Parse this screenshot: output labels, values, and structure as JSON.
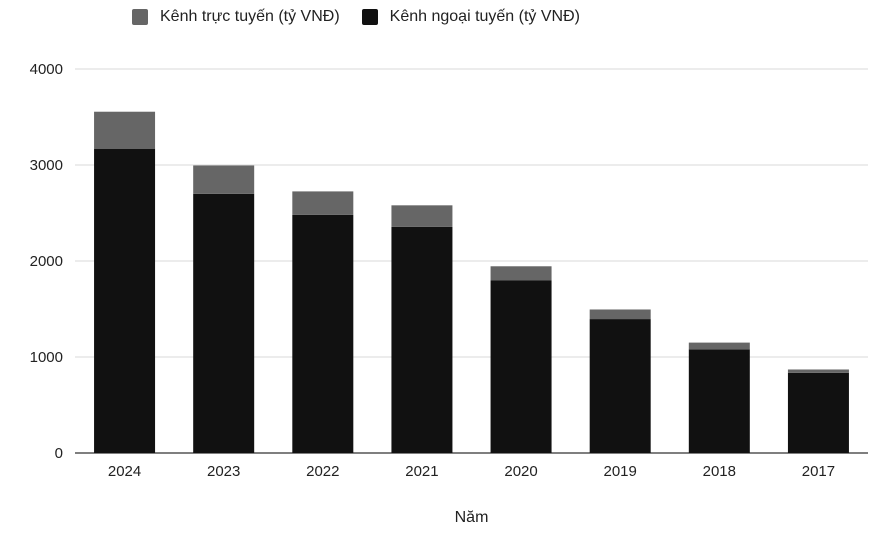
{
  "chart_data": {
    "type": "bar",
    "stacked": true,
    "categories": [
      "2024",
      "2023",
      "2022",
      "2021",
      "2020",
      "2019",
      "2018",
      "2017"
    ],
    "series": [
      {
        "name": "Kênh ngoại tuyến (tỷ VNĐ)",
        "color": "#111111",
        "values": [
          3170,
          2700,
          2480,
          2355,
          1800,
          1395,
          1080,
          835
        ]
      },
      {
        "name": "Kênh trực tuyến (tỷ VNĐ)",
        "color": "#666666",
        "values": [
          385,
          295,
          245,
          225,
          145,
          100,
          70,
          35
        ]
      }
    ],
    "xlabel": "Năm",
    "ylabel": "",
    "ylim": [
      0,
      4000
    ],
    "yticks": [
      "0",
      "1000",
      "2000",
      "3000",
      "4000"
    ],
    "grid": true,
    "legend_position": "top-left"
  },
  "legend": {
    "online": "Kênh trực tuyến (tỷ VNĐ)",
    "offline": "Kênh ngoại tuyến (tỷ VNĐ)",
    "online_color": "#666666",
    "offline_color": "#111111"
  }
}
